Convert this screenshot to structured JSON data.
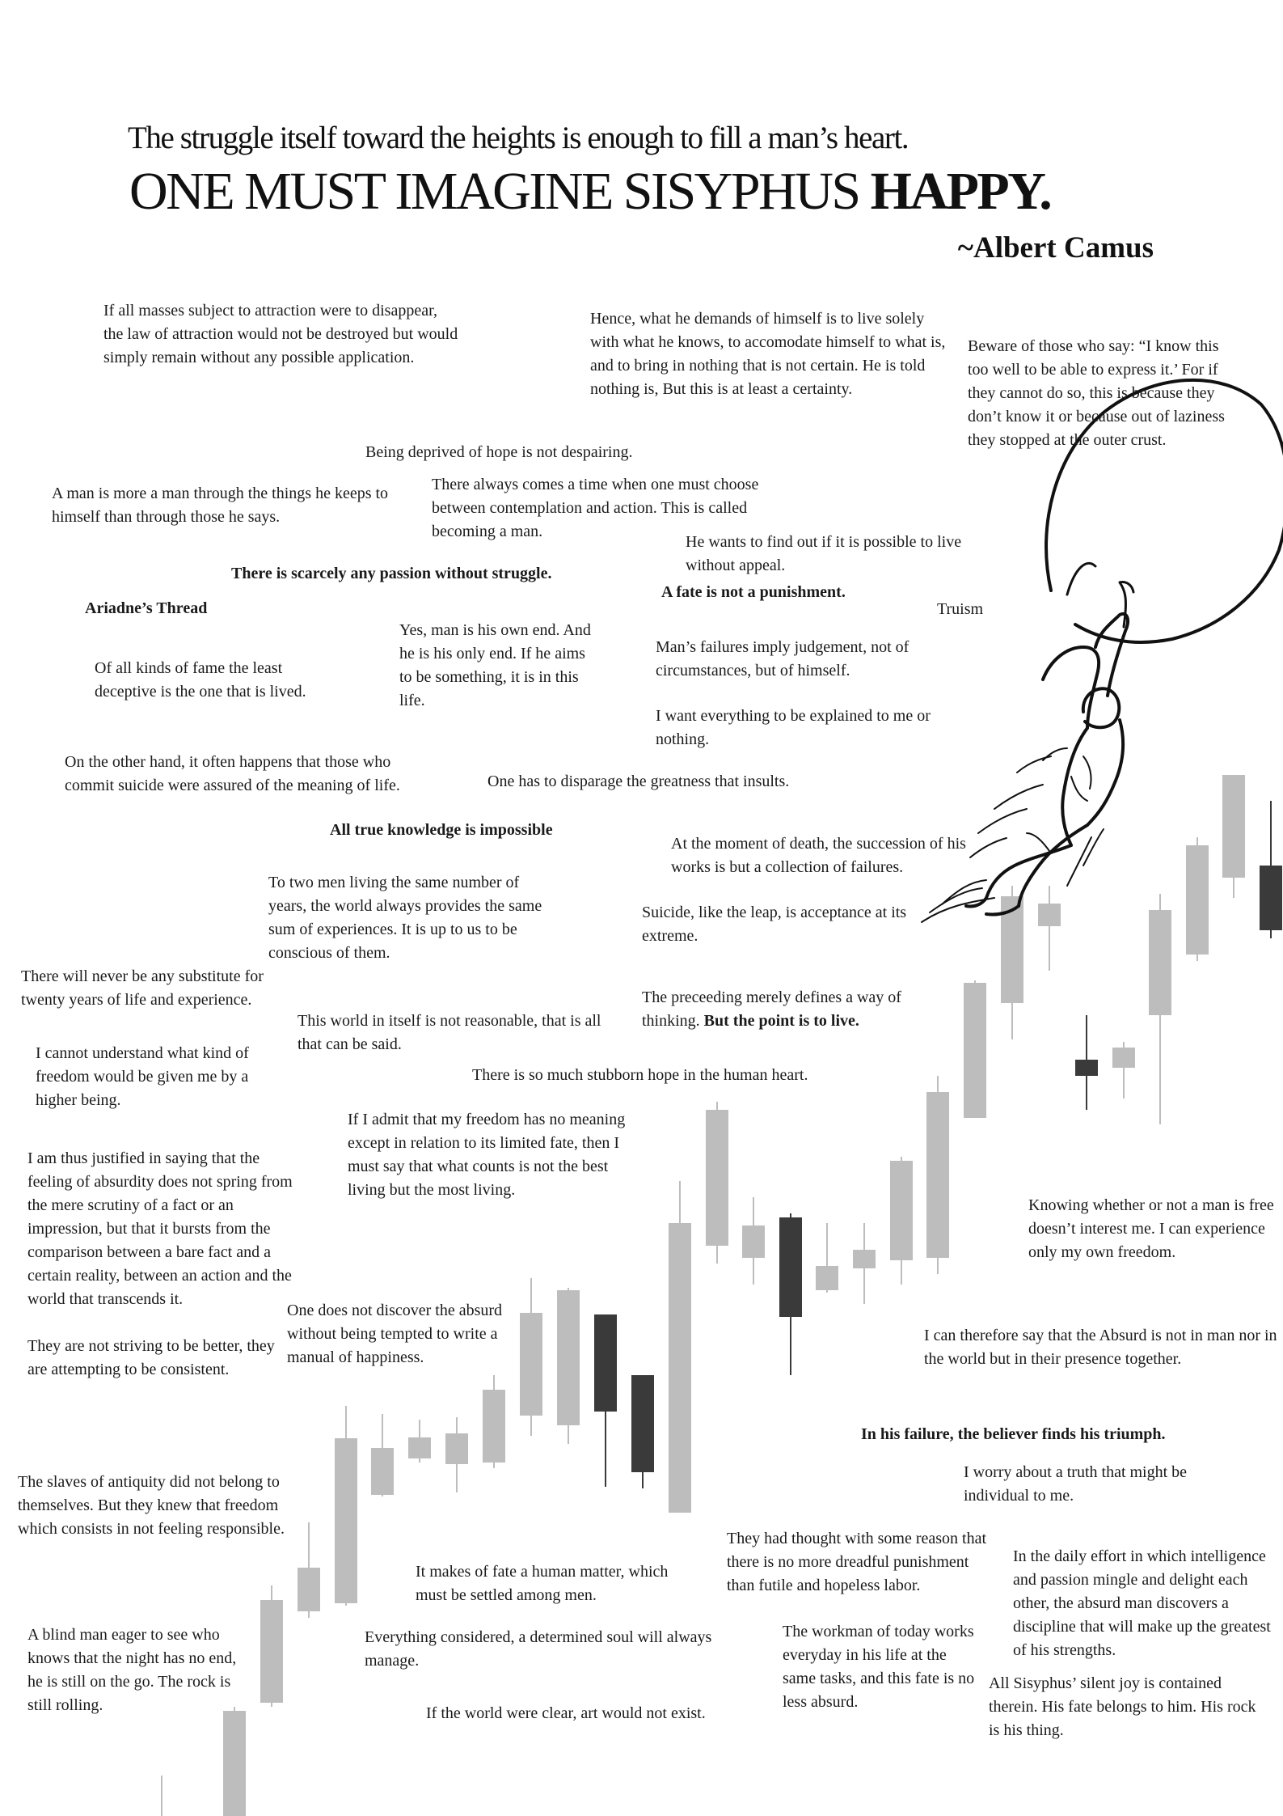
{
  "header": {
    "subtitle": "The struggle itself toward the heights is enough to fill a man’s heart.",
    "headline_main": "ONE MUST IMAGINE SISYPHUS",
    "headline_bold": "HAPPY.",
    "author": "~Albert Camus"
  },
  "quotes": [
    {
      "id": "q1",
      "text": "If all masses subject to attraction were to disappear, the law of attraction would not be destroyed but would simply remain without any possible application."
    },
    {
      "id": "q2",
      "text": "Hence, what he demands of himself is to live solely with what he knows, to accomodate himself to what is, and to bring in nothing that is not certain. He is told nothing is, But this is at least a certainty."
    },
    {
      "id": "q3",
      "text": "Beware of those who say: “I know this too well to be able to express it.’ For if they cannot do so, this is because they don’t know it or because out of laziness they stopped at the outer crust."
    },
    {
      "id": "q4",
      "text": "Being deprived of hope is not despairing."
    },
    {
      "id": "q5",
      "text": "A man is more a man through the things he keeps to himself than through those he says."
    },
    {
      "id": "q6",
      "text": "There always comes a time when one must choose between contemplation and action. This is called becoming a man."
    },
    {
      "id": "q7",
      "text": "He wants to find out if it is possible to live without appeal."
    },
    {
      "id": "q8",
      "text": "There is scarcely any passion without struggle."
    },
    {
      "id": "q9",
      "text": "A fate is not a punishment."
    },
    {
      "id": "q10",
      "text": "Ariadne’s Thread"
    },
    {
      "id": "q11",
      "text": "Truism"
    },
    {
      "id": "q12",
      "text": "Yes, man is his own end. And he is his only end. If he aims to be something, it is in this life."
    },
    {
      "id": "q13",
      "text": "Man’s failures imply judgement, not of circumstances, but of himself."
    },
    {
      "id": "q14",
      "text": "Of all kinds of fame the least deceptive is the one that is lived."
    },
    {
      "id": "q15",
      "text": "I want everything to be explained to me or nothing."
    },
    {
      "id": "q16",
      "text": "On the other hand, it often happens that those who commit suicide were assured of the meaning of life."
    },
    {
      "id": "q17",
      "text": "One has to disparage the greatness that insults."
    },
    {
      "id": "q18",
      "text": "All true knowledge is impossible"
    },
    {
      "id": "q19",
      "text": "At the moment of death, the succession of his works is but a collection of failures."
    },
    {
      "id": "q20",
      "text": "To two men living the same number of years, the world always provides the same sum of experiences. It is up to us to be conscious of them."
    },
    {
      "id": "q21",
      "text": "Suicide, like the leap, is acceptance at its extreme."
    },
    {
      "id": "q22",
      "text": "There will never be any substitute for twenty years of life and experience."
    },
    {
      "id": "q23",
      "text": "This world in itself is not reasonable, that is all that can be said."
    },
    {
      "id": "q24a",
      "text": "The preceeding merely defines a way of thinking."
    },
    {
      "id": "q24b",
      "text": "But the point is to live."
    },
    {
      "id": "q25",
      "text": "I cannot understand what kind of freedom would be given me by a higher being."
    },
    {
      "id": "q26",
      "text": "There is so much stubborn hope in the human heart."
    },
    {
      "id": "q27",
      "text": "If I admit that my freedom has no meaning except in relation to its limited fate, then I must say that what counts is not the best living but the most living."
    },
    {
      "id": "q28",
      "text": "I am thus justified in saying that the feeling of absurdity does not spring from the mere scrutiny of a fact or an impression, but that it bursts from the comparison between a bare fact and a certain reality, between an action and the world that transcends it."
    },
    {
      "id": "q29",
      "text": "Knowing whether or not a man is free doesn’t interest me. I can experience only my own freedom."
    },
    {
      "id": "q30",
      "text": "One does not discover the absurd without being tempted to write a manual of happiness."
    },
    {
      "id": "q31",
      "text": "I can therefore say that the Absurd is not in man nor in the world but in their presence together."
    },
    {
      "id": "q32",
      "text": "They are not striving to be better, they are attempting to be consistent."
    },
    {
      "id": "q33",
      "text": "In his failure, the believer finds his triumph."
    },
    {
      "id": "q34",
      "text": "I worry about a truth that might be individual to me."
    },
    {
      "id": "q35",
      "text": "The slaves of antiquity did not belong to themselves. But they knew that freedom which consists in not feeling responsible."
    },
    {
      "id": "q36",
      "text": "They had thought with some reason that there is no more dreadful punishment than futile and hopeless labor."
    },
    {
      "id": "q37",
      "text": "In the daily effort in which intelligence and passion mingle and delight each other, the absurd man discovers a discipline that will make up the greatest of his strengths."
    },
    {
      "id": "q38",
      "text": "It makes of fate a human matter, which must be settled among men."
    },
    {
      "id": "q39",
      "text": "A blind man eager to see who knows that the night has no end, he is still on the go. The rock is still rolling."
    },
    {
      "id": "q40",
      "text": "Everything considered, a determined soul will always manage."
    },
    {
      "id": "q41",
      "text": "The workman of today works everyday in his life at the same tasks, and this fate is no less absurd."
    },
    {
      "id": "q42",
      "text": "All Sisyphus’ silent joy is contained therein. His fate belongs to him. His rock is his thing."
    },
    {
      "id": "q43",
      "text": "If the world were clear, art would not exist."
    }
  ],
  "colors": {
    "candle_up": "#bdbdbd",
    "candle_down": "#3a3a3a",
    "wick": "#bdbdbd",
    "ink": "#111111"
  }
}
